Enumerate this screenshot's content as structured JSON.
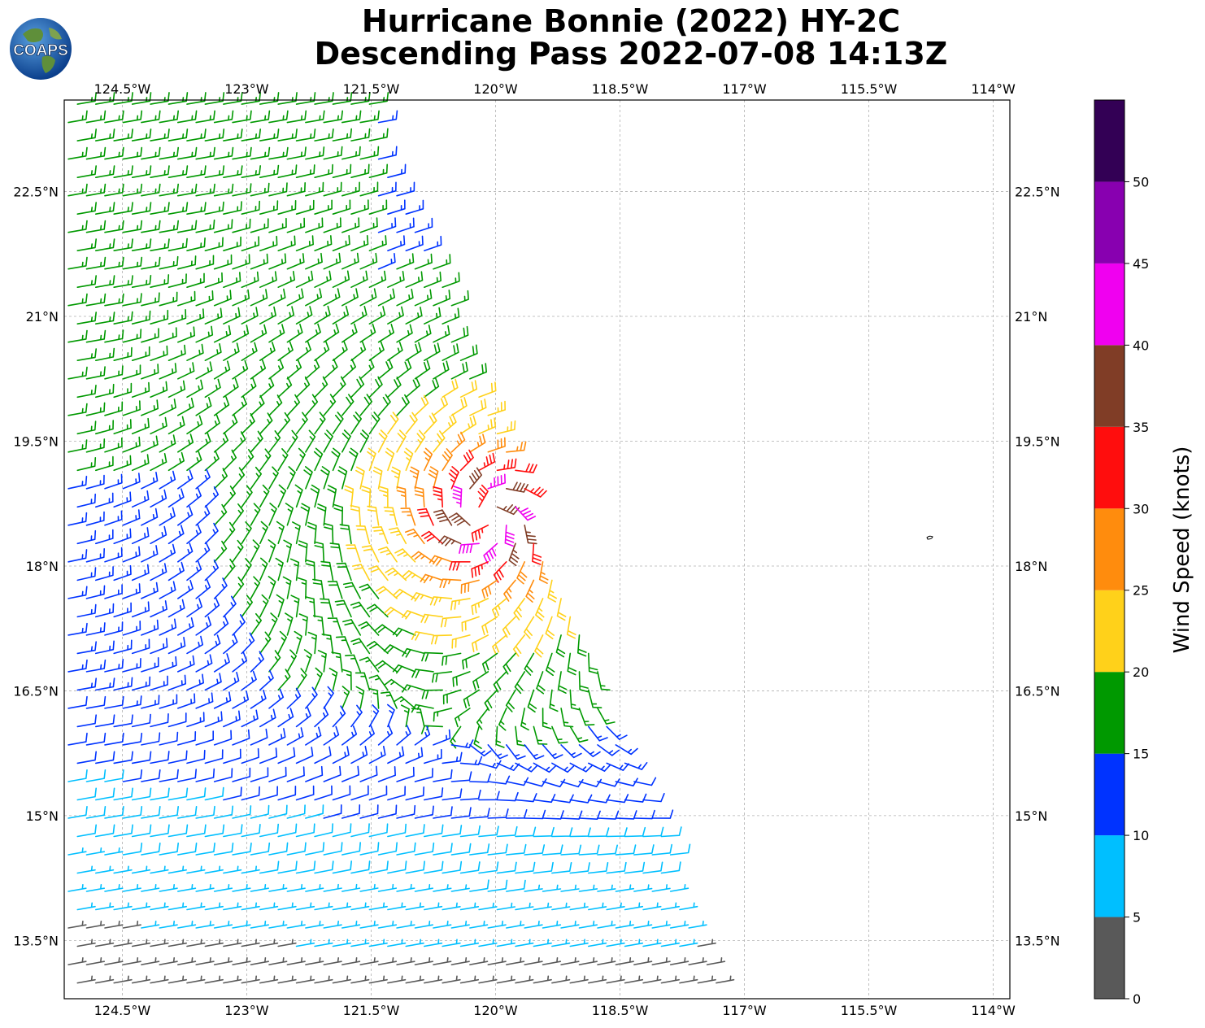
{
  "title_line1": "Hurricane Bonnie (2022) HY-2C",
  "title_line2": "Descending Pass 2022-07-08 14:13Z",
  "logo_text": "COAPS",
  "lon_ticks": [
    "124.5°W",
    "123°W",
    "121.5°W",
    "120°W",
    "118.5°W",
    "117°W",
    "115.5°W",
    "114°W"
  ],
  "lon_values": [
    -124.5,
    -123,
    -121.5,
    -120,
    -118.5,
    -117,
    -115.5,
    -114
  ],
  "lat_ticks": [
    "22.5°N",
    "21°N",
    "19.5°N",
    "18°N",
    "16.5°N",
    "15°N",
    "13.5°N"
  ],
  "lat_values": [
    22.5,
    21,
    19.5,
    18,
    16.5,
    15,
    13.5
  ],
  "map_extent": {
    "lon_min": -125.2,
    "lon_max": -113.8,
    "lat_min": 12.8,
    "lat_max": 23.6
  },
  "colorbar": {
    "label": "Wind Speed (knots)",
    "tick_labels": [
      "0",
      "5",
      "10",
      "15",
      "20",
      "25",
      "30",
      "35",
      "40",
      "45",
      "50"
    ],
    "bins": [
      {
        "min": 0,
        "max": 5,
        "color": "#595959"
      },
      {
        "min": 5,
        "max": 10,
        "color": "#00bfff"
      },
      {
        "min": 10,
        "max": 15,
        "color": "#0033ff"
      },
      {
        "min": 15,
        "max": 20,
        "color": "#009900"
      },
      {
        "min": 20,
        "max": 25,
        "color": "#ffd11a"
      },
      {
        "min": 25,
        "max": 30,
        "color": "#ff8c0d"
      },
      {
        "min": 30,
        "max": 35,
        "color": "#ff0d0d"
      },
      {
        "min": 35,
        "max": 40,
        "color": "#803d26"
      },
      {
        "min": 40,
        "max": 45,
        "color": "#f000f0"
      },
      {
        "min": 45,
        "max": 50,
        "color": "#8800b0"
      },
      {
        "min": 50,
        "max": 55,
        "color": "#330055"
      }
    ]
  },
  "wind_field": {
    "storm_center": {
      "lon": -120.1,
      "lat": 18.6
    },
    "peak_speed_kt": 38,
    "swath_edge_west": {
      "lon": -125.2
    },
    "swath_edge_east": [
      {
        "lat": 23.6,
        "lon": -121.5
      },
      {
        "lat": 12.8,
        "lon": -117.2
      }
    ]
  }
}
